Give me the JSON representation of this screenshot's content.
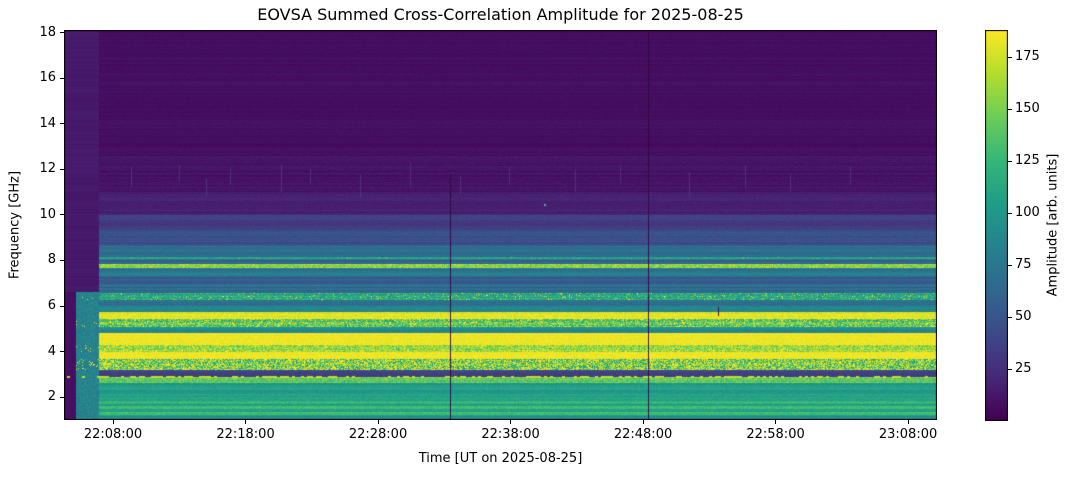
{
  "chart_data": {
    "type": "heatmap",
    "colormap": "viridis",
    "title": "EOVSA Summed Cross-Correlation Amplitude for 2025-08-25",
    "xlabel": "Time [UT on 2025-08-25]",
    "ylabel": "Frequency [GHz]",
    "colorbar_label": "Amplitude [arb. units]",
    "x_ticks": [
      "22:08:00",
      "22:18:00",
      "22:28:00",
      "22:38:00",
      "22:48:00",
      "22:58:00",
      "23:08:00"
    ],
    "y_ticks": [
      2,
      4,
      6,
      8,
      10,
      12,
      14,
      16,
      18
    ],
    "colorbar_ticks": [
      25,
      50,
      75,
      100,
      125,
      150,
      175
    ],
    "time_range": [
      "22:04:18",
      "23:10:11"
    ],
    "freq_range_ghz": [
      0.99,
      18.13
    ],
    "amplitude_range": [
      0,
      188
    ],
    "grid": false,
    "legend": "colorbar-right",
    "frequency_bands": [
      {
        "f_high": 18.2,
        "f_low": 12.6,
        "amp": 7,
        "row_var": 3,
        "noise": 2
      },
      {
        "f_high": 12.6,
        "f_low": 11.0,
        "amp": 10,
        "row_var": 4,
        "noise": 3
      },
      {
        "f_high": 11.0,
        "f_low": 10.0,
        "amp": 16,
        "row_var": 5,
        "noise": 3
      },
      {
        "f_high": 10.0,
        "f_low": 9.3,
        "amp": 34,
        "row_var": 8,
        "noise": 4
      },
      {
        "f_high": 9.3,
        "f_low": 8.7,
        "amp": 48,
        "row_var": 10,
        "noise": 5
      },
      {
        "f_high": 8.7,
        "f_low": 8.17,
        "amp": 66,
        "row_var": 12,
        "noise": 5
      },
      {
        "f_high": 8.17,
        "f_low": 8.05,
        "amp": 110,
        "row_var": 8,
        "noise": 12,
        "speckle": 0.03,
        "speckle_amp": 150
      },
      {
        "f_high": 8.05,
        "f_low": 7.83,
        "amp": 62,
        "row_var": 10,
        "noise": 5
      },
      {
        "f_high": 7.83,
        "f_low": 7.65,
        "amp": 156,
        "row_var": 10,
        "noise": 22
      },
      {
        "f_high": 7.65,
        "f_low": 7.28,
        "amp": 74,
        "row_var": 14,
        "noise": 6
      },
      {
        "f_high": 7.28,
        "f_low": 6.95,
        "amp": 58,
        "row_var": 12,
        "noise": 5
      },
      {
        "f_high": 6.95,
        "f_low": 6.55,
        "amp": 66,
        "row_var": 14,
        "noise": 6
      },
      {
        "f_high": 6.55,
        "f_low": 6.28,
        "amp": 112,
        "row_var": 10,
        "noise": 22,
        "speckle": 0.05,
        "speckle_amp": 180
      },
      {
        "f_high": 6.28,
        "f_low": 5.98,
        "amp": 70,
        "row_var": 12,
        "noise": 6
      },
      {
        "f_high": 5.98,
        "f_low": 5.72,
        "amp": 82,
        "row_var": 12,
        "noise": 8
      },
      {
        "f_high": 5.72,
        "f_low": 5.42,
        "amp": 180,
        "row_var": 5,
        "noise": 10
      },
      {
        "f_high": 5.42,
        "f_low": 5.06,
        "amp": 135,
        "row_var": 12,
        "noise": 30,
        "speckle": 0.12,
        "speckle_amp": 186
      },
      {
        "f_high": 5.06,
        "f_low": 4.8,
        "amp": 92,
        "row_var": 10,
        "noise": 8
      },
      {
        "f_high": 4.8,
        "f_low": 4.28,
        "amp": 184,
        "row_var": 3,
        "noise": 6
      },
      {
        "f_high": 4.28,
        "f_low": 3.98,
        "amp": 158,
        "row_var": 8,
        "noise": 25,
        "speckle": 0.1,
        "speckle_amp": 186
      },
      {
        "f_high": 3.98,
        "f_low": 3.68,
        "amp": 184,
        "row_var": 3,
        "noise": 6
      },
      {
        "f_high": 3.68,
        "f_low": 3.2,
        "amp": 135,
        "row_var": 10,
        "noise": 45,
        "speckle": 0.22,
        "speckle_amp": 186
      },
      {
        "f_high": 3.2,
        "f_low": 2.86,
        "amp": 38,
        "row_var": 6,
        "noise": 4
      },
      {
        "f_high": 2.86,
        "f_low": 2.62,
        "amp": 146,
        "row_var": 8,
        "noise": 18
      },
      {
        "f_high": 2.62,
        "f_low": 1.84,
        "amp": 106,
        "row_var": 10,
        "noise": 8
      },
      {
        "f_high": 1.84,
        "f_low": 1.7,
        "amp": 126,
        "row_var": 6,
        "noise": 10
      },
      {
        "f_high": 1.7,
        "f_low": 1.6,
        "amp": 104,
        "row_var": 8,
        "noise": 8
      },
      {
        "f_high": 1.6,
        "f_low": 1.47,
        "amp": 128,
        "row_var": 6,
        "noise": 10
      },
      {
        "f_high": 1.47,
        "f_low": 1.33,
        "amp": 106,
        "row_var": 8,
        "noise": 8
      },
      {
        "f_high": 1.33,
        "f_low": 1.21,
        "amp": 130,
        "row_var": 6,
        "noise": 10
      },
      {
        "f_high": 1.21,
        "f_low": 0.9,
        "amp": 96,
        "row_var": 8,
        "noise": 8
      }
    ],
    "quiet_leadin": {
      "dark_end_time": "22:05:12",
      "end_time": "22:06:52",
      "below_freq_ghz": 6.6,
      "dark_amp": 6,
      "teal_amp": 84,
      "purple_amp": 13
    },
    "dotted_line": {
      "freq_ghz": 2.92,
      "amplitude": 170
    },
    "vertical_events": [
      {
        "time": "22:33:25",
        "f_low": 1.05,
        "f_high": 11.8,
        "type": "dropout-line"
      },
      {
        "time": "22:48:23",
        "f_low": 1.0,
        "f_high": 18.1,
        "type": "dropout-line"
      },
      {
        "time": "22:53:40",
        "f_low": 5.55,
        "f_high": 5.95,
        "type": "dropout-tick"
      }
    ],
    "faint_streaks": [
      {
        "time": "22:09:20",
        "f_low": 11.2,
        "f_high": 12.1
      },
      {
        "time": "22:13:00",
        "f_low": 11.5,
        "f_high": 12.2
      },
      {
        "time": "22:15:00",
        "f_low": 10.9,
        "f_high": 11.6
      },
      {
        "time": "22:16:50",
        "f_low": 11.3,
        "f_high": 12.0
      },
      {
        "time": "22:20:40",
        "f_low": 11.0,
        "f_high": 12.2
      },
      {
        "time": "22:22:50",
        "f_low": 11.4,
        "f_high": 12.0
      },
      {
        "time": "22:26:40",
        "f_low": 10.8,
        "f_high": 11.8
      },
      {
        "time": "22:30:25",
        "f_low": 11.2,
        "f_high": 12.3
      },
      {
        "time": "22:34:10",
        "f_low": 10.9,
        "f_high": 11.7
      },
      {
        "time": "22:37:55",
        "f_low": 11.3,
        "f_high": 12.1
      },
      {
        "time": "22:42:50",
        "f_low": 11.0,
        "f_high": 12.0
      },
      {
        "time": "22:46:15",
        "f_low": 11.4,
        "f_high": 12.2
      },
      {
        "time": "22:51:30",
        "f_low": 10.9,
        "f_high": 11.9
      },
      {
        "time": "22:55:40",
        "f_low": 11.2,
        "f_high": 12.2
      },
      {
        "time": "22:59:05",
        "f_low": 11.0,
        "f_high": 11.8
      },
      {
        "time": "23:03:35",
        "f_low": 11.3,
        "f_high": 12.1
      }
    ],
    "point_marks": [
      {
        "time": "22:40:33",
        "freq_ghz": 10.5,
        "color": "#35b9b0",
        "size": 2
      }
    ],
    "colors": {
      "background": "#ffffff",
      "text": "#000000",
      "spine": "#000000",
      "viridis_low": "#440154",
      "viridis_mid": "#21918c",
      "viridis_high": "#fde725",
      "dropout_line": "#2d0845",
      "faint_streak": "#8291d2"
    }
  }
}
